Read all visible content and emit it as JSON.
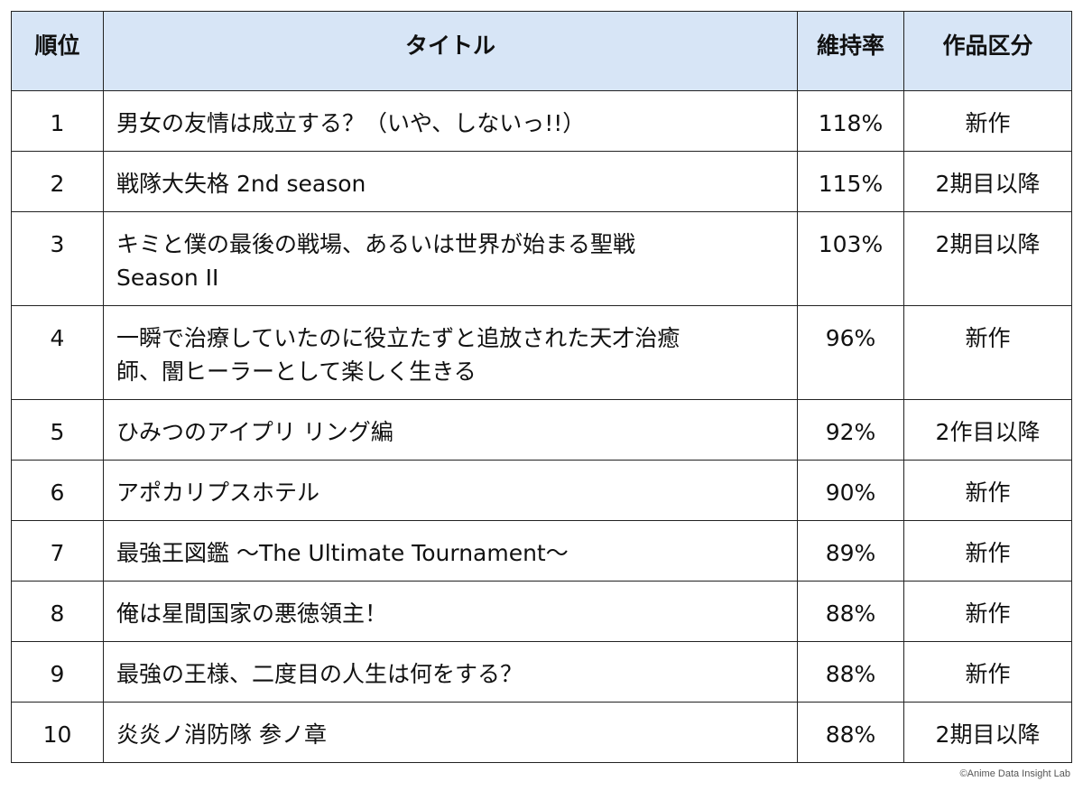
{
  "table": {
    "headers": {
      "rank": "順位",
      "title": "タイトル",
      "rate": "維持率",
      "type": "作品区分"
    },
    "rows": [
      {
        "rank": "1",
        "title": "男女の友情は成立する？（いや、しないっ!!）",
        "rate": "118%",
        "type": "新作"
      },
      {
        "rank": "2",
        "title": "戦隊大失格 2nd season",
        "rate": "115%",
        "type": "2期目以降"
      },
      {
        "rank": "3",
        "title_line1": "キミと僕の最後の戦場、あるいは世界が始まる聖戦",
        "title_line2": "Season II",
        "rate": "103%",
        "type": "2期目以降"
      },
      {
        "rank": "4",
        "title_line1": "一瞬で治療していたのに役立たずと追放された天才治癒",
        "title_line2": "師、闇ヒーラーとして楽しく生きる",
        "rate": "96%",
        "type": "新作"
      },
      {
        "rank": "5",
        "title": "ひみつのアイプリ リング編",
        "rate": "92%",
        "type": "2作目以降"
      },
      {
        "rank": "6",
        "title": "アポカリプスホテル",
        "rate": "90%",
        "type": "新作"
      },
      {
        "rank": "7",
        "title": "最強王図鑑 〜The Ultimate Tournament〜",
        "rate": "89%",
        "type": "新作"
      },
      {
        "rank": "8",
        "title": "俺は星間国家の悪徳領主！",
        "rate": "88%",
        "type": "新作"
      },
      {
        "rank": "9",
        "title": "最強の王様、二度目の人生は何をする？",
        "rate": "88%",
        "type": "新作"
      },
      {
        "rank": "10",
        "title": "炎炎ノ消防隊 参ノ章",
        "rate": "88%",
        "type": "2期目以降"
      }
    ]
  },
  "credit": "©Anime Data Insight Lab"
}
